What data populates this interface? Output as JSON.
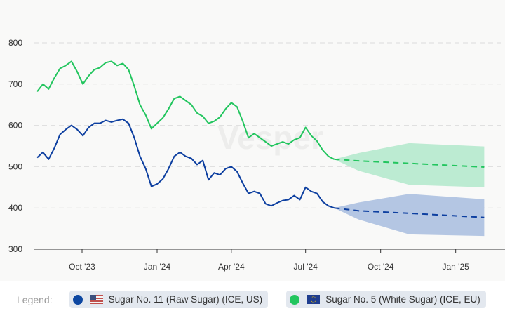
{
  "chart_data": {
    "type": "line",
    "title": "",
    "xlabel": "",
    "ylabel": "",
    "ylim": [
      300,
      800
    ],
    "yticks": [
      "300",
      "400",
      "500",
      "600",
      "700",
      "800"
    ],
    "xticks": [
      {
        "label": "Oct '23",
        "date": "2023-10-01"
      },
      {
        "label": "Jan '24",
        "date": "2024-01-01"
      },
      {
        "label": "Apr '24",
        "date": "2024-04-01"
      },
      {
        "label": "Jul '24",
        "date": "2024-07-01"
      },
      {
        "label": "Oct '24",
        "date": "2024-10-01"
      },
      {
        "label": "Jan '25",
        "date": "2025-01-01"
      }
    ],
    "grid": true,
    "legend_position": "bottom",
    "watermark": "Vesper",
    "dates": [
      "2023-08-07",
      "2023-08-14",
      "2023-08-21",
      "2023-08-28",
      "2023-09-04",
      "2023-09-11",
      "2023-09-18",
      "2023-09-25",
      "2023-10-02",
      "2023-10-09",
      "2023-10-16",
      "2023-10-23",
      "2023-10-30",
      "2023-11-06",
      "2023-11-13",
      "2023-11-20",
      "2023-11-27",
      "2023-12-04",
      "2023-12-11",
      "2023-12-18",
      "2023-12-25",
      "2024-01-01",
      "2024-01-08",
      "2024-01-15",
      "2024-01-22",
      "2024-01-29",
      "2024-02-05",
      "2024-02-12",
      "2024-02-19",
      "2024-02-26",
      "2024-03-04",
      "2024-03-11",
      "2024-03-18",
      "2024-03-25",
      "2024-04-01",
      "2024-04-08",
      "2024-04-15",
      "2024-04-22",
      "2024-04-29",
      "2024-05-06",
      "2024-05-13",
      "2024-05-20",
      "2024-05-27",
      "2024-06-03",
      "2024-06-10",
      "2024-06-17",
      "2024-06-24",
      "2024-07-01",
      "2024-07-08",
      "2024-07-15",
      "2024-07-22",
      "2024-07-29",
      "2024-08-05"
    ],
    "forecast_dates": [
      "2024-08-05",
      "2024-09-04",
      "2024-11-05",
      "2025-02-05"
    ],
    "series": [
      {
        "name": "Sugar No. 11 (Raw Sugar) (ICE, US)",
        "color": "#0d3fa0",
        "band_color": "#b0c3e1",
        "flag": "us-flag",
        "values": [
          522,
          535,
          518,
          545,
          578,
          590,
          600,
          590,
          575,
          595,
          605,
          605,
          612,
          608,
          612,
          615,
          605,
          570,
          525,
          495,
          452,
          458,
          470,
          495,
          525,
          535,
          525,
          520,
          505,
          515,
          468,
          485,
          480,
          495,
          500,
          488,
          460,
          435,
          440,
          435,
          410,
          405,
          412,
          418,
          420,
          430,
          420,
          450,
          440,
          435,
          415,
          405,
          400
        ],
        "forecast": [
          400,
          393,
          387,
          377
        ],
        "forecast_upper": [
          400,
          413,
          434,
          421
        ],
        "forecast_lower": [
          400,
          372,
          336,
          332
        ]
      },
      {
        "name": "Sugar No. 5 (White Sugar) (ICE, EU)",
        "color": "#22c55e",
        "band_color": "#b8ead0",
        "flag": "eu-flag",
        "values": [
          682,
          700,
          688,
          715,
          738,
          745,
          755,
          730,
          700,
          720,
          735,
          740,
          752,
          755,
          745,
          750,
          735,
          695,
          650,
          625,
          592,
          605,
          618,
          640,
          665,
          670,
          660,
          650,
          630,
          622,
          605,
          610,
          620,
          640,
          655,
          645,
          610,
          570,
          580,
          570,
          560,
          550,
          555,
          560,
          555,
          565,
          570,
          595,
          575,
          562,
          540,
          525,
          518
        ],
        "forecast": [
          518,
          514,
          508,
          499
        ],
        "forecast_upper": [
          518,
          533,
          557,
          549
        ],
        "forecast_lower": [
          518,
          490,
          456,
          450
        ]
      }
    ]
  },
  "legend": {
    "title": "Legend:"
  }
}
